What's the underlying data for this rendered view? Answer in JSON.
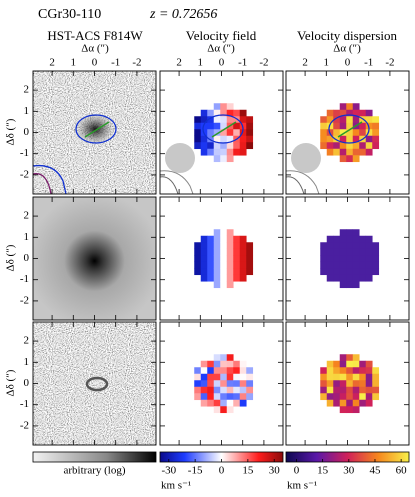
{
  "header": {
    "object": "CGr30-110",
    "redshift": "z = 0.72656"
  },
  "columns": [
    "HST-ACS F814W",
    "Velocity field",
    "Velocity dispersion"
  ],
  "x_axis": {
    "label": "Δα (″)",
    "lim": [
      2.9,
      -2.9
    ],
    "ticks": [
      2,
      1,
      0,
      -1,
      -2
    ]
  },
  "y_axis": {
    "label": "Δδ (″)",
    "lim": [
      -2.9,
      2.9
    ],
    "ticks": [
      2,
      1,
      0,
      -1,
      -2
    ]
  },
  "colorbars": [
    {
      "label": "arbitrary (log)"
    },
    {
      "unit": "km s⁻¹",
      "lim": [
        -35,
        35
      ],
      "ticks": [
        -30,
        -15,
        0,
        15,
        30
      ]
    },
    {
      "unit": "km s⁻¹",
      "lim": [
        -6,
        64.5
      ],
      "ticks": [
        0,
        15,
        30,
        45,
        60
      ]
    }
  ]
}
